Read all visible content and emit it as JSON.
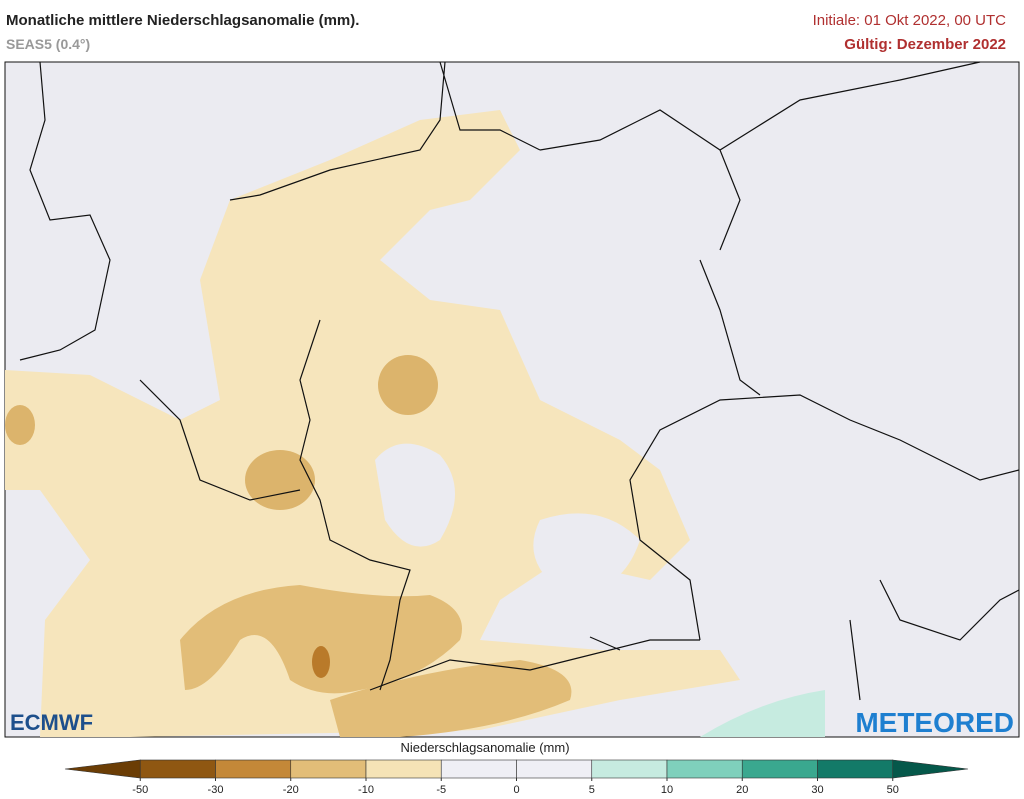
{
  "header": {
    "title": "Monatliche mittlere Niederschlagsanomalie (mm).",
    "subtitle": "SEAS5 (0.4°)",
    "initial": "Initiale: 01 Okt 2022, 00 UTC",
    "valid": "Gültig: Dezember 2022"
  },
  "logos": {
    "left": "ECMWF",
    "right": "METEORED"
  },
  "legend": {
    "label": "Niederschlagsanomalie (mm)",
    "ticks": [
      -50,
      -30,
      -20,
      -10,
      -5,
      0,
      5,
      10,
      20,
      30,
      50
    ],
    "colors": [
      "#6b3d05",
      "#8f5712",
      "#c48838",
      "#e2bd78",
      "#f5e3b6",
      "#efeff5",
      "#efeff5",
      "#c6ebe0",
      "#7fd0bc",
      "#3aa88f",
      "#137a68",
      "#05584a"
    ]
  }
}
